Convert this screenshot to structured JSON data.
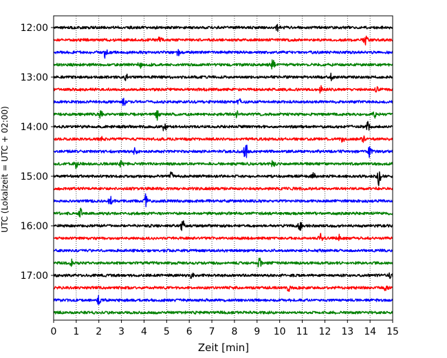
{
  "chart_data": {
    "type": "line",
    "title": "",
    "xlabel": "Zeit  [min]",
    "ylabel": "UTC (Lokalzeit = UTC + 02:00)",
    "xlim": [
      0,
      15
    ],
    "x_ticks": [
      "0",
      "1",
      "2",
      "3",
      "4",
      "5",
      "6",
      "7",
      "8",
      "9",
      "10",
      "11",
      "12",
      "13",
      "14",
      "15"
    ],
    "y_ticks": [
      "12:00",
      "13:00",
      "14:00",
      "15:00",
      "16:00",
      "17:00"
    ],
    "vertical_grid": true,
    "trace_minutes_per_line": 15,
    "trace_colors": [
      "#000000",
      "#ff0000",
      "#0000ff",
      "#008000"
    ],
    "series": [
      {
        "start": "12:00",
        "color": "#000000",
        "events": [
          [
            9.9,
            0.5
          ]
        ]
      },
      {
        "start": "12:15",
        "color": "#ff0000",
        "events": [
          [
            4.7,
            0.5
          ],
          [
            13.8,
            0.8
          ]
        ]
      },
      {
        "start": "12:30",
        "color": "#0000ff",
        "events": [
          [
            2.3,
            1.0
          ],
          [
            5.5,
            0.5
          ]
        ]
      },
      {
        "start": "12:45",
        "color": "#008000",
        "events": [
          [
            3.8,
            0.6
          ],
          [
            9.7,
            1.3
          ]
        ]
      },
      {
        "start": "13:00",
        "color": "#000000",
        "events": [
          [
            3.2,
            0.5
          ],
          [
            12.3,
            0.8
          ]
        ]
      },
      {
        "start": "13:15",
        "color": "#ff0000",
        "events": [
          [
            11.8,
            0.6
          ],
          [
            14.3,
            0.5
          ]
        ]
      },
      {
        "start": "13:30",
        "color": "#0000ff",
        "events": [
          [
            3.1,
            0.6
          ],
          [
            8.2,
            0.5
          ]
        ]
      },
      {
        "start": "13:45",
        "color": "#008000",
        "events": [
          [
            2.1,
            0.8
          ],
          [
            4.6,
            0.9
          ],
          [
            8.1,
            0.5
          ],
          [
            14.2,
            0.5
          ]
        ]
      },
      {
        "start": "14:00",
        "color": "#000000",
        "events": [
          [
            4.9,
            0.8
          ],
          [
            13.9,
            0.8
          ]
        ]
      },
      {
        "start": "14:15",
        "color": "#ff0000",
        "events": [
          [
            2.1,
            0.5
          ],
          [
            12.8,
            0.5
          ],
          [
            13.7,
            0.5
          ]
        ]
      },
      {
        "start": "14:30",
        "color": "#0000ff",
        "events": [
          [
            3.6,
            0.6
          ],
          [
            8.5,
            1.6
          ],
          [
            14.0,
            1.1
          ]
        ]
      },
      {
        "start": "14:45",
        "color": "#008000",
        "events": [
          [
            1.0,
            0.7
          ],
          [
            3.0,
            0.6
          ],
          [
            9.7,
            0.6
          ]
        ]
      },
      {
        "start": "15:00",
        "color": "#000000",
        "events": [
          [
            5.2,
            0.6
          ],
          [
            11.5,
            0.5
          ],
          [
            14.4,
            1.4
          ]
        ]
      },
      {
        "start": "15:15",
        "color": "#ff0000",
        "events": []
      },
      {
        "start": "15:30",
        "color": "#0000ff",
        "events": [
          [
            2.5,
            0.7
          ],
          [
            4.1,
            1.3
          ]
        ]
      },
      {
        "start": "15:45",
        "color": "#008000",
        "events": [
          [
            1.2,
            0.8
          ]
        ]
      },
      {
        "start": "16:00",
        "color": "#000000",
        "events": [
          [
            5.7,
            1.0
          ],
          [
            10.9,
            0.7
          ]
        ]
      },
      {
        "start": "16:15",
        "color": "#ff0000",
        "events": [
          [
            11.8,
            0.6
          ],
          [
            12.6,
            0.6
          ]
        ]
      },
      {
        "start": "16:30",
        "color": "#0000ff",
        "events": []
      },
      {
        "start": "16:45",
        "color": "#008000",
        "events": [
          [
            0.8,
            0.5
          ],
          [
            9.1,
            0.9
          ]
        ]
      },
      {
        "start": "17:00",
        "color": "#000000",
        "events": [
          [
            6.1,
            0.5
          ],
          [
            14.9,
            0.4
          ]
        ]
      },
      {
        "start": "17:15",
        "color": "#ff0000",
        "events": [
          [
            10.4,
            0.5
          ],
          [
            14.7,
            0.5
          ]
        ]
      },
      {
        "start": "17:30",
        "color": "#0000ff",
        "events": [
          [
            2.0,
            0.7
          ]
        ]
      },
      {
        "start": "17:45",
        "color": "#008000",
        "events": []
      }
    ]
  }
}
